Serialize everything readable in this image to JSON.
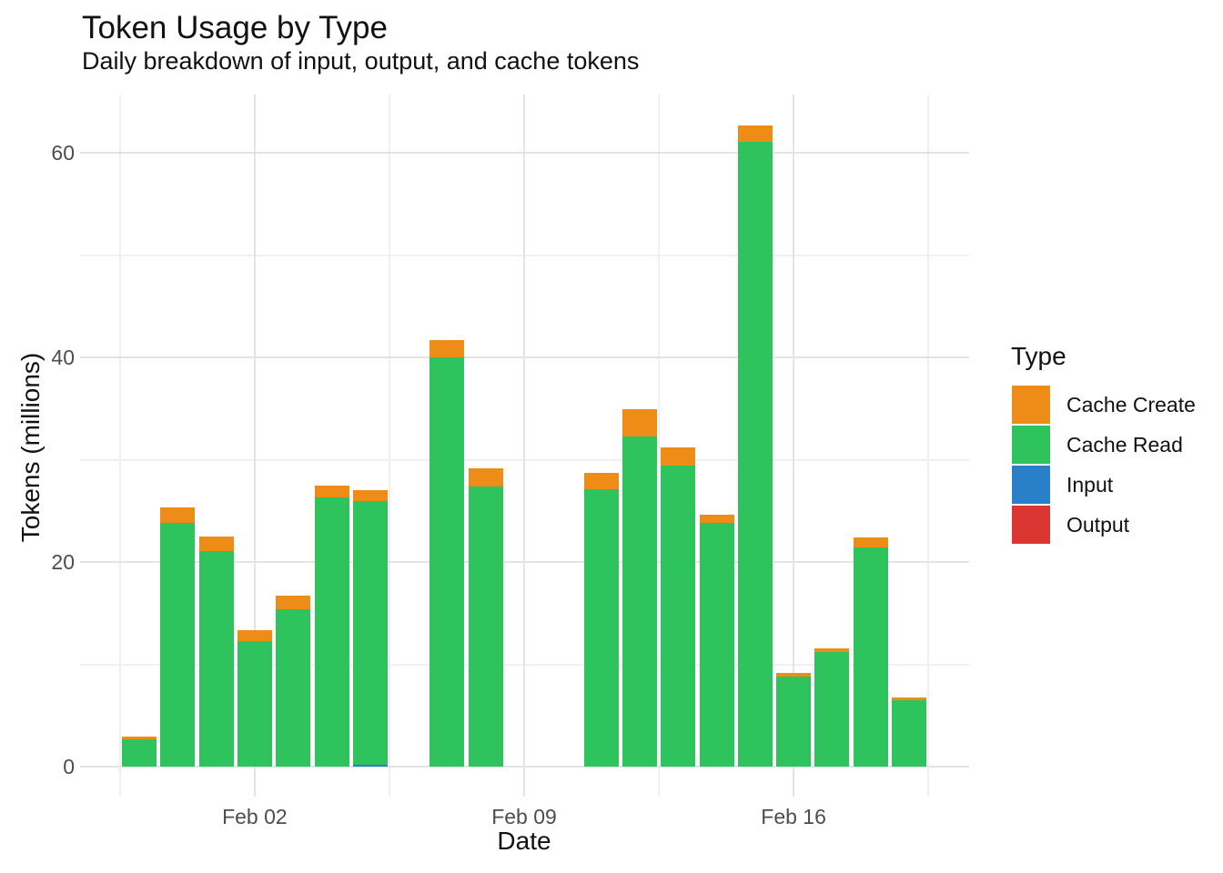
{
  "header": {
    "title": "Token Usage by Type",
    "subtitle": "Daily breakdown of input, output, and cache tokens"
  },
  "chart_data": {
    "type": "bar",
    "stacked": true,
    "title": "Token Usage by Type",
    "subtitle": "Daily breakdown of input, output, and cache tokens",
    "xlabel": "Date",
    "ylabel": "Tokens (millions)",
    "unit": "millions of tokens",
    "categories": [
      "Jan 30",
      "Jan 31",
      "Feb 01",
      "Feb 02",
      "Feb 03",
      "Feb 04",
      "Feb 05",
      "Feb 07",
      "Feb 08",
      "Feb 11",
      "Feb 12",
      "Feb 13",
      "Feb 14",
      "Feb 15",
      "Feb 16",
      "Feb 17",
      "Feb 18",
      "Feb 19"
    ],
    "day_offsets": [
      0,
      1,
      2,
      3,
      4,
      5,
      6,
      8,
      9,
      12,
      13,
      14,
      15,
      16,
      17,
      18,
      19,
      20
    ],
    "missing_days": [
      "Feb 06",
      "Feb 09",
      "Feb 10"
    ],
    "series": [
      {
        "name": "Output",
        "color": "#db3632",
        "stack_position": "bottom",
        "values": [
          0,
          0,
          0,
          0,
          0,
          0,
          0,
          0,
          0,
          0,
          0,
          0,
          0,
          0,
          0,
          0,
          0,
          0
        ]
      },
      {
        "name": "Input",
        "color": "#2a80c8",
        "stack_position": "second",
        "values": [
          0,
          0,
          0,
          0,
          0,
          0,
          0.15,
          0,
          0,
          0,
          0,
          0,
          0,
          0,
          0,
          0,
          0,
          0
        ]
      },
      {
        "name": "Cache Read",
        "color": "#2fc35e",
        "stack_position": "third",
        "values": [
          2.7,
          23.8,
          21.1,
          12.3,
          15.4,
          26.3,
          25.8,
          40.0,
          27.4,
          27.1,
          32.3,
          29.4,
          23.8,
          61.1,
          8.8,
          11.2,
          21.4,
          6.5
        ]
      },
      {
        "name": "Cache Create",
        "color": "#ee8c18",
        "stack_position": "top",
        "values": [
          0.2,
          1.5,
          1.4,
          1.0,
          1.3,
          1.2,
          1.1,
          1.7,
          1.8,
          1.6,
          2.6,
          1.8,
          0.8,
          1.6,
          0.4,
          0.4,
          1.0,
          0.3
        ]
      }
    ],
    "totals": [
      2.9,
      25.3,
      22.5,
      13.3,
      16.7,
      27.5,
      27.1,
      41.7,
      29.2,
      28.7,
      34.9,
      31.2,
      24.6,
      62.7,
      9.2,
      11.6,
      22.4,
      6.8
    ],
    "y_axis": {
      "label": "Tokens (millions)",
      "ticks": [
        {
          "value": 0,
          "label": "0"
        },
        {
          "value": 20,
          "label": "20"
        },
        {
          "value": 40,
          "label": "40"
        },
        {
          "value": 60,
          "label": "60"
        }
      ],
      "minor_ticks": [
        10,
        30,
        50
      ],
      "ylim": [
        -3.1,
        65.9
      ],
      "grid": true
    },
    "x_axis": {
      "label": "Date",
      "ticks": [
        {
          "day": 3,
          "label": "Feb 02"
        },
        {
          "day": 10,
          "label": "Feb 09"
        },
        {
          "day": 17,
          "label": "Feb 16"
        }
      ],
      "minor_tick_days": [
        -0.5,
        6.5,
        13.5,
        20.5
      ],
      "grid": true
    },
    "legend_position": "right",
    "style": {
      "background": "#ffffff",
      "grid_major_color": "#e4e4e4",
      "grid_minor_color": "#f0f0f0",
      "tick_label_color": "#4d4d4d",
      "text_color": "#111111"
    }
  },
  "legend": {
    "title": "Type",
    "items": [
      {
        "label": "Cache Create",
        "color": "#ee8c18"
      },
      {
        "label": "Cache Read",
        "color": "#2fc35e"
      },
      {
        "label": "Input",
        "color": "#2a80c8"
      },
      {
        "label": "Output",
        "color": "#db3632"
      }
    ]
  }
}
